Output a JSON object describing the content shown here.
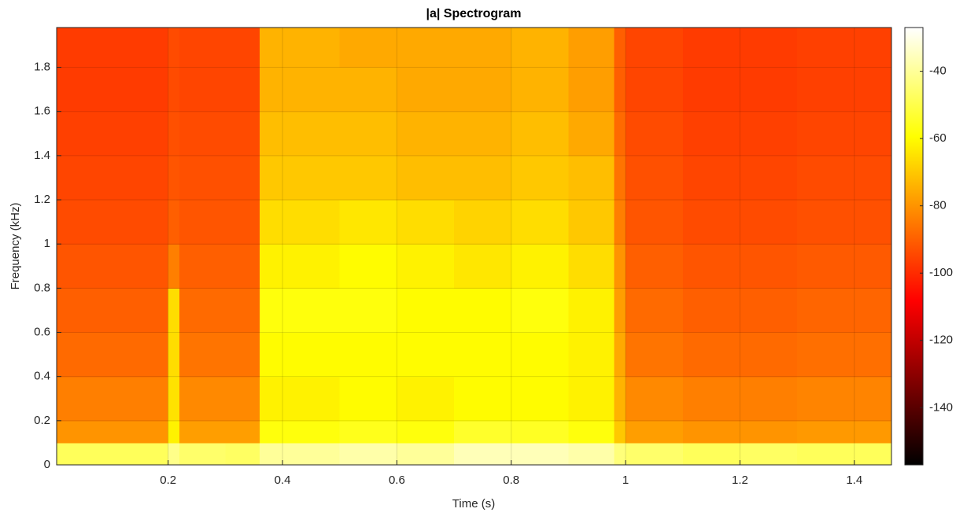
{
  "chart_data": {
    "type": "heatmap",
    "title": "|a| Spectrogram",
    "x_label": "Time (s)",
    "y_label": "Frequency (kHz)",
    "colormap": "hot",
    "clim": [
      -157,
      -27
    ],
    "grid": true,
    "xlim": [
      0.005,
      1.465
    ],
    "ylim": [
      0,
      1.98
    ],
    "xticks": [
      0.2,
      0.4,
      0.6,
      0.8,
      1,
      1.2,
      1.4
    ],
    "yticks": [
      0,
      0.2,
      0.4,
      0.6,
      0.8,
      1,
      1.2,
      1.4,
      1.6,
      1.8
    ],
    "cticks": [
      -40,
      -60,
      -80,
      -100,
      -120,
      -140
    ],
    "xbins": [
      0.005,
      0.1,
      0.2,
      0.22,
      0.3,
      0.36,
      0.5,
      0.6,
      0.7,
      0.8,
      0.9,
      0.98,
      1.0,
      1.1,
      1.2,
      1.3,
      1.465
    ],
    "ybins": [
      0,
      0.1,
      0.2,
      0.4,
      0.6,
      0.8,
      1.0,
      1.2,
      1.4,
      1.6,
      1.8,
      1.98
    ],
    "z": [
      [
        -48,
        -48,
        -42,
        -46,
        -47,
        -40,
        -38,
        -40,
        -36,
        -36,
        -38,
        -44,
        -46,
        -48,
        -47,
        -48
      ],
      [
        -80,
        -80,
        -62,
        -78,
        -78,
        -58,
        -56,
        -58,
        -54,
        -55,
        -58,
        -70,
        -78,
        -80,
        -80,
        -79
      ],
      [
        -84,
        -84,
        -65,
        -82,
        -82,
        -62,
        -60,
        -62,
        -60,
        -60,
        -62,
        -74,
        -82,
        -84,
        -84,
        -83
      ],
      [
        -88,
        -88,
        -66,
        -86,
        -86,
        -60,
        -60,
        -60,
        -60,
        -60,
        -62,
        -76,
        -86,
        -88,
        -88,
        -87
      ],
      [
        -90,
        -90,
        -66,
        -88,
        -88,
        -58,
        -58,
        -60,
        -60,
        -58,
        -62,
        -78,
        -88,
        -90,
        -90,
        -89
      ],
      [
        -92,
        -92,
        -84,
        -90,
        -90,
        -62,
        -60,
        -62,
        -64,
        -62,
        -66,
        -80,
        -90,
        -92,
        -92,
        -91
      ],
      [
        -94,
        -94,
        -90,
        -92,
        -92,
        -66,
        -64,
        -66,
        -68,
        -66,
        -70,
        -84,
        -92,
        -94,
        -94,
        -93
      ],
      [
        -95,
        -95,
        -92,
        -93,
        -93,
        -70,
        -70,
        -72,
        -72,
        -70,
        -72,
        -86,
        -93,
        -95,
        -95,
        -94
      ],
      [
        -96,
        -96,
        -93,
        -94,
        -94,
        -72,
        -72,
        -74,
        -74,
        -72,
        -76,
        -88,
        -94,
        -96,
        -96,
        -95
      ],
      [
        -97,
        -97,
        -94,
        -95,
        -95,
        -74,
        -74,
        -76,
        -76,
        -74,
        -78,
        -90,
        -95,
        -97,
        -97,
        -96
      ],
      [
        -97,
        -97,
        -94,
        -95,
        -95,
        -74,
        -76,
        -76,
        -76,
        -74,
        -78,
        -90,
        -95,
        -97,
        -97,
        -96
      ]
    ]
  }
}
